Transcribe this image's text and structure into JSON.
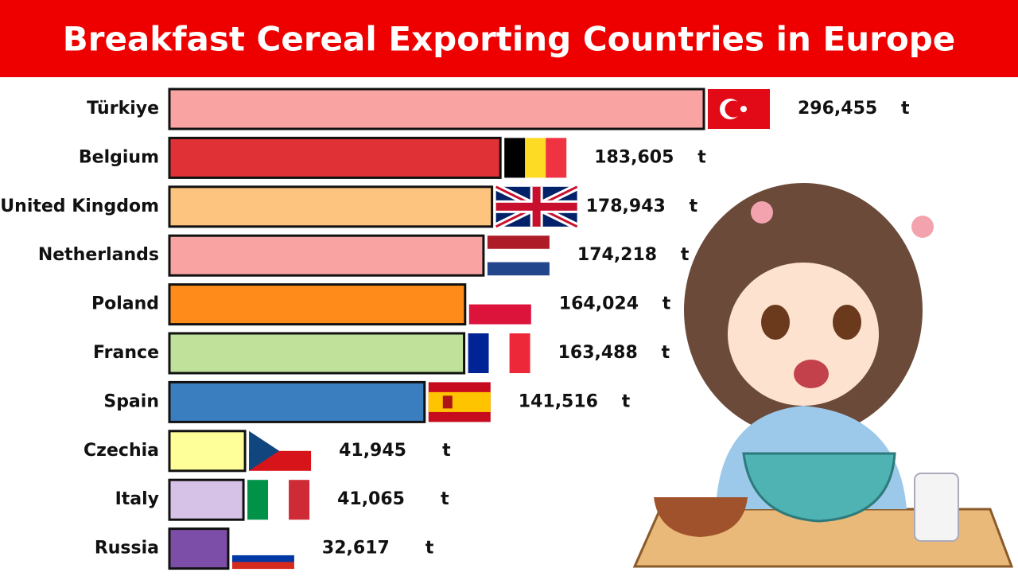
{
  "chart_data": {
    "type": "bar",
    "orientation": "horizontal",
    "title": "Breakfast Cereal Exporting Countries in Europe",
    "categories": [
      "Türkiye",
      "Belgium",
      "United Kingdom",
      "Netherlands",
      "Poland",
      "France",
      "Spain",
      "Czechia",
      "Italy",
      "Russia"
    ],
    "values": [
      296455,
      183605,
      178943,
      174218,
      164024,
      163488,
      141516,
      41945,
      41065,
      32617
    ],
    "value_labels": [
      "296,455",
      "183,605",
      "178,943",
      "174,218",
      "164,024",
      "163,488",
      "141,516",
      "41,945",
      "41,065",
      "32,617"
    ],
    "unit": "t",
    "colors": [
      "#f9a3a3",
      "#e03236",
      "#fcc47e",
      "#f9a3a3",
      "#ff8c1a",
      "#bfe19a",
      "#3a7ec0",
      "#ffff99",
      "#d6c2e6",
      "#7d4ea8"
    ]
  }
}
